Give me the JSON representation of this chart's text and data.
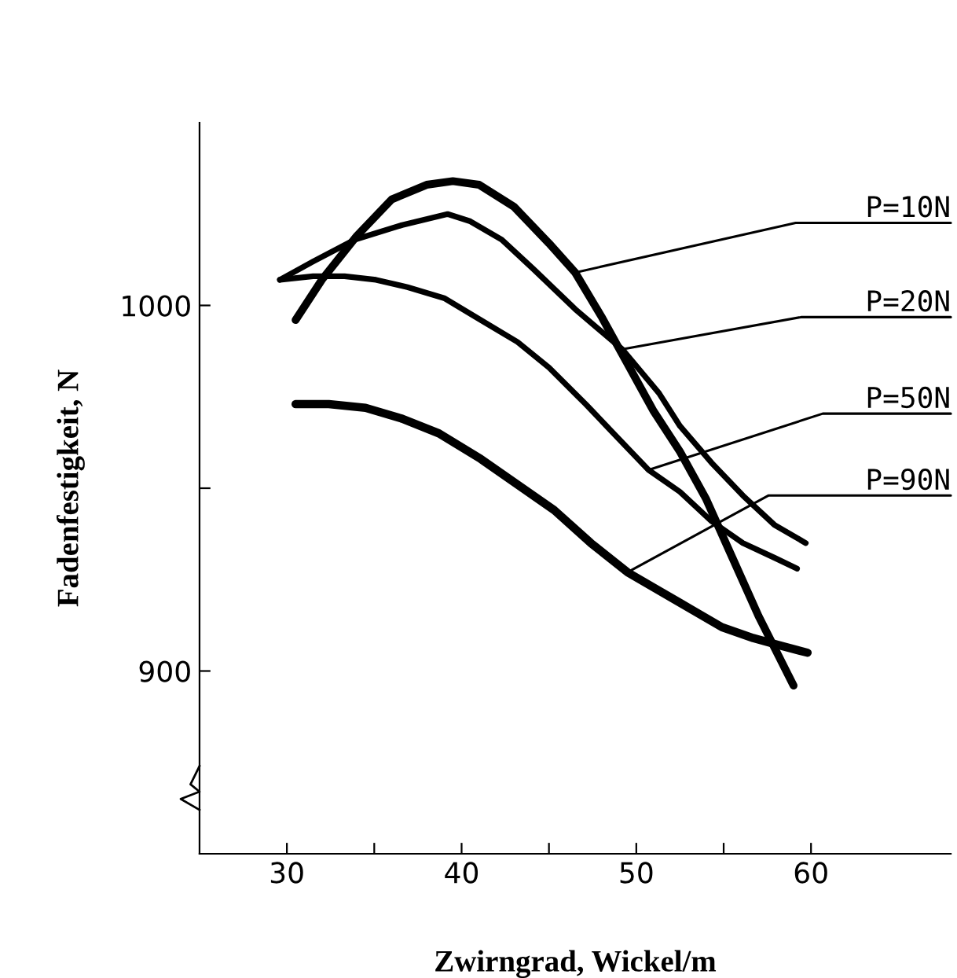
{
  "chart_data": {
    "type": "line",
    "xlabel": "Zwirngrad, Wickel/m",
    "ylabel": "Fadenfestigkeit, N",
    "xlim": [
      25,
      68
    ],
    "ylim": [
      850,
      1050
    ],
    "xticks": [
      30,
      {
        "value": 35,
        "label": null
      },
      40,
      {
        "value": 45,
        "label": null
      },
      50,
      {
        "value": 55,
        "label": null
      },
      60
    ],
    "yticks": [
      900,
      {
        "value": 950,
        "label": null
      },
      1000
    ],
    "grid": false,
    "legend": false,
    "marker": "none",
    "line_style": "solid",
    "series": [
      {
        "name": "P=10N",
        "color": "#000000",
        "x": [
          30.5,
          32,
          34,
          36,
          38,
          39.5,
          41,
          43,
          45,
          46.5,
          48,
          49.5,
          51,
          52.5,
          54,
          55.5,
          57,
          59
        ],
        "values": [
          996,
          1007,
          1019,
          1029,
          1033,
          1034,
          1033,
          1027,
          1017,
          1009,
          997,
          984,
          971,
          960,
          947,
          931,
          915,
          896
        ]
      },
      {
        "name": "P=20N",
        "color": "#000000",
        "x": [
          29.6,
          31.5,
          33.9,
          36.6,
          39.2,
          40.5,
          42.3,
          44.1,
          46.5,
          49.2,
          51.3,
          52.5,
          54.3,
          56.1,
          57.9,
          59.7
        ],
        "values": [
          1007,
          1012,
          1018,
          1022,
          1025,
          1023,
          1018,
          1010,
          999,
          988,
          976,
          967,
          957,
          948,
          940,
          935
        ]
      },
      {
        "name": "P=50N",
        "color": "#000000",
        "x": [
          29.6,
          31.5,
          33.3,
          35.1,
          36.9,
          39.0,
          41.1,
          43.2,
          45.0,
          47.1,
          48.9,
          50.7,
          52.5,
          54.3,
          56.1,
          57.9,
          59.2
        ],
        "values": [
          1007,
          1008,
          1008,
          1007,
          1005,
          1002,
          996,
          990,
          983,
          973,
          964,
          955,
          949,
          941,
          935,
          931,
          928
        ]
      },
      {
        "name": "P=90N",
        "color": "#000000",
        "x": [
          30.5,
          32.4,
          34.5,
          36.6,
          38.7,
          41.1,
          43.2,
          45.3,
          47.4,
          49.5,
          51.3,
          53.1,
          54.9,
          56.7,
          58.2,
          59.8
        ],
        "values": [
          973,
          973,
          972,
          969,
          965,
          958,
          951,
          944,
          935,
          927,
          922,
          917,
          912,
          909,
          907,
          905
        ]
      }
    ]
  }
}
